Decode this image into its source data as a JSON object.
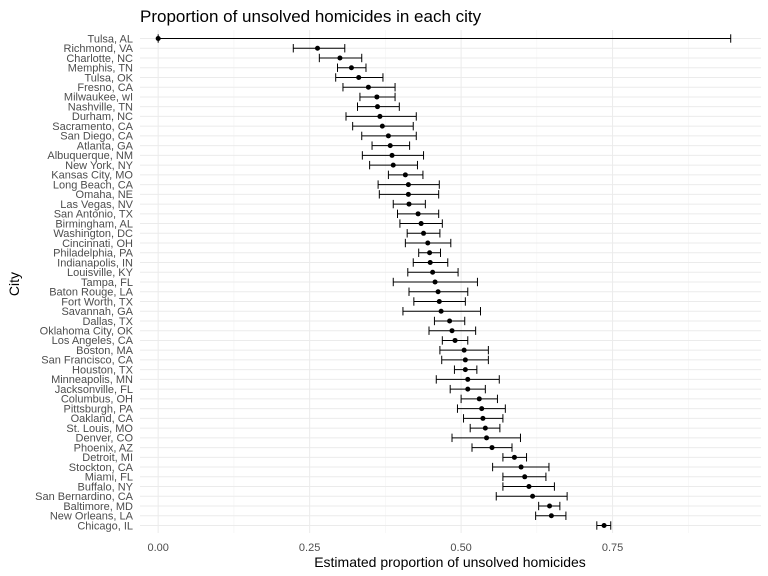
{
  "chart_data": {
    "type": "scatter",
    "title": "Proportion of unsolved homicides in each city",
    "xlabel": "Estimated proportion of unsolved homicides",
    "ylabel": "City",
    "xlim": [
      -0.03,
      0.995
    ],
    "xticks": [
      0,
      0.25,
      0.5,
      0.75
    ],
    "xtick_labels": [
      "0.00",
      "0.25",
      "0.50",
      "0.75"
    ],
    "grid": true,
    "error_bars": "horizontal confidence interval",
    "cities": [
      {
        "name": "Tulsa, AL",
        "estimate": 0.0,
        "lower": 0.0,
        "upper": 0.945
      },
      {
        "name": "Richmond, VA",
        "estimate": 0.263,
        "lower": 0.223,
        "upper": 0.308
      },
      {
        "name": "Charlotte, NC",
        "estimate": 0.3,
        "lower": 0.266,
        "upper": 0.336
      },
      {
        "name": "Memphis, TN",
        "estimate": 0.319,
        "lower": 0.296,
        "upper": 0.343
      },
      {
        "name": "Tulsa, OK",
        "estimate": 0.331,
        "lower": 0.293,
        "upper": 0.371
      },
      {
        "name": "Fresno, CA",
        "estimate": 0.347,
        "lower": 0.305,
        "upper": 0.391
      },
      {
        "name": "Milwaukee, wI",
        "estimate": 0.361,
        "lower": 0.333,
        "upper": 0.391
      },
      {
        "name": "Nashville, TN",
        "estimate": 0.362,
        "lower": 0.329,
        "upper": 0.398
      },
      {
        "name": "Durham, NC",
        "estimate": 0.366,
        "lower": 0.31,
        "upper": 0.426
      },
      {
        "name": "Sacramento, CA",
        "estimate": 0.37,
        "lower": 0.321,
        "upper": 0.421
      },
      {
        "name": "San Diego, CA",
        "estimate": 0.38,
        "lower": 0.336,
        "upper": 0.426
      },
      {
        "name": "Atlanta, GA",
        "estimate": 0.383,
        "lower": 0.353,
        "upper": 0.415
      },
      {
        "name": "Albuquerque, NM",
        "estimate": 0.386,
        "lower": 0.337,
        "upper": 0.438
      },
      {
        "name": "New York, NY",
        "estimate": 0.388,
        "lower": 0.349,
        "upper": 0.428
      },
      {
        "name": "Kansas City, MO",
        "estimate": 0.408,
        "lower": 0.38,
        "upper": 0.437
      },
      {
        "name": "Long Beach, CA",
        "estimate": 0.413,
        "lower": 0.363,
        "upper": 0.464
      },
      {
        "name": "Omaha, NE",
        "estimate": 0.413,
        "lower": 0.365,
        "upper": 0.463
      },
      {
        "name": "Las Vegas, NV",
        "estimate": 0.414,
        "lower": 0.388,
        "upper": 0.441
      },
      {
        "name": "San Antonio, TX",
        "estimate": 0.429,
        "lower": 0.395,
        "upper": 0.463
      },
      {
        "name": "Birmingham, AL",
        "estimate": 0.434,
        "lower": 0.399,
        "upper": 0.469
      },
      {
        "name": "Washington, DC",
        "estimate": 0.438,
        "lower": 0.411,
        "upper": 0.465
      },
      {
        "name": "Cincinnati, OH",
        "estimate": 0.445,
        "lower": 0.408,
        "upper": 0.483
      },
      {
        "name": "Philadelphia, PA",
        "estimate": 0.448,
        "lower": 0.43,
        "upper": 0.466
      },
      {
        "name": "Indianapolis, IN",
        "estimate": 0.449,
        "lower": 0.421,
        "upper": 0.478
      },
      {
        "name": "Louisville, KY",
        "estimate": 0.453,
        "lower": 0.412,
        "upper": 0.495
      },
      {
        "name": "Tampa, FL",
        "estimate": 0.457,
        "lower": 0.388,
        "upper": 0.527
      },
      {
        "name": "Baton Rouge, LA",
        "estimate": 0.462,
        "lower": 0.414,
        "upper": 0.511
      },
      {
        "name": "Fort Worth, TX",
        "estimate": 0.464,
        "lower": 0.422,
        "upper": 0.507
      },
      {
        "name": "Savannah, GA",
        "estimate": 0.467,
        "lower": 0.404,
        "upper": 0.532
      },
      {
        "name": "Dallas, TX",
        "estimate": 0.481,
        "lower": 0.456,
        "upper": 0.506
      },
      {
        "name": "Oklahoma City, OK",
        "estimate": 0.485,
        "lower": 0.447,
        "upper": 0.524
      },
      {
        "name": "Los Angeles, CA",
        "estimate": 0.49,
        "lower": 0.469,
        "upper": 0.511
      },
      {
        "name": "Boston, MA",
        "estimate": 0.505,
        "lower": 0.465,
        "upper": 0.545
      },
      {
        "name": "San Francisco, CA",
        "estimate": 0.507,
        "lower": 0.468,
        "upper": 0.545
      },
      {
        "name": "Houston, TX",
        "estimate": 0.507,
        "lower": 0.489,
        "upper": 0.526
      },
      {
        "name": "Minneapolis, MN",
        "estimate": 0.511,
        "lower": 0.459,
        "upper": 0.563
      },
      {
        "name": "Jacksonville, FL",
        "estimate": 0.511,
        "lower": 0.482,
        "upper": 0.54
      },
      {
        "name": "Columbus, OH",
        "estimate": 0.53,
        "lower": 0.5,
        "upper": 0.56
      },
      {
        "name": "Pittsburgh, PA",
        "estimate": 0.534,
        "lower": 0.494,
        "upper": 0.573
      },
      {
        "name": "Oakland, CA",
        "estimate": 0.536,
        "lower": 0.504,
        "upper": 0.569
      },
      {
        "name": "St. Louis, MO",
        "estimate": 0.54,
        "lower": 0.515,
        "upper": 0.564
      },
      {
        "name": "Denver, CO",
        "estimate": 0.542,
        "lower": 0.485,
        "upper": 0.598
      },
      {
        "name": "Phoenix, AZ",
        "estimate": 0.551,
        "lower": 0.518,
        "upper": 0.584
      },
      {
        "name": "Detroit, MI",
        "estimate": 0.588,
        "lower": 0.569,
        "upper": 0.608
      },
      {
        "name": "Stockton, CA",
        "estimate": 0.599,
        "lower": 0.552,
        "upper": 0.645
      },
      {
        "name": "Miami, FL",
        "estimate": 0.605,
        "lower": 0.569,
        "upper": 0.64
      },
      {
        "name": "Buffalo, NY",
        "estimate": 0.612,
        "lower": 0.569,
        "upper": 0.654
      },
      {
        "name": "San Bernardino, CA",
        "estimate": 0.618,
        "lower": 0.558,
        "upper": 0.675
      },
      {
        "name": "Baltimore, MD",
        "estimate": 0.646,
        "lower": 0.628,
        "upper": 0.663
      },
      {
        "name": "New Orleans, LA",
        "estimate": 0.649,
        "lower": 0.623,
        "upper": 0.673
      },
      {
        "name": "Chicago, IL",
        "estimate": 0.736,
        "lower": 0.724,
        "upper": 0.747
      }
    ]
  }
}
